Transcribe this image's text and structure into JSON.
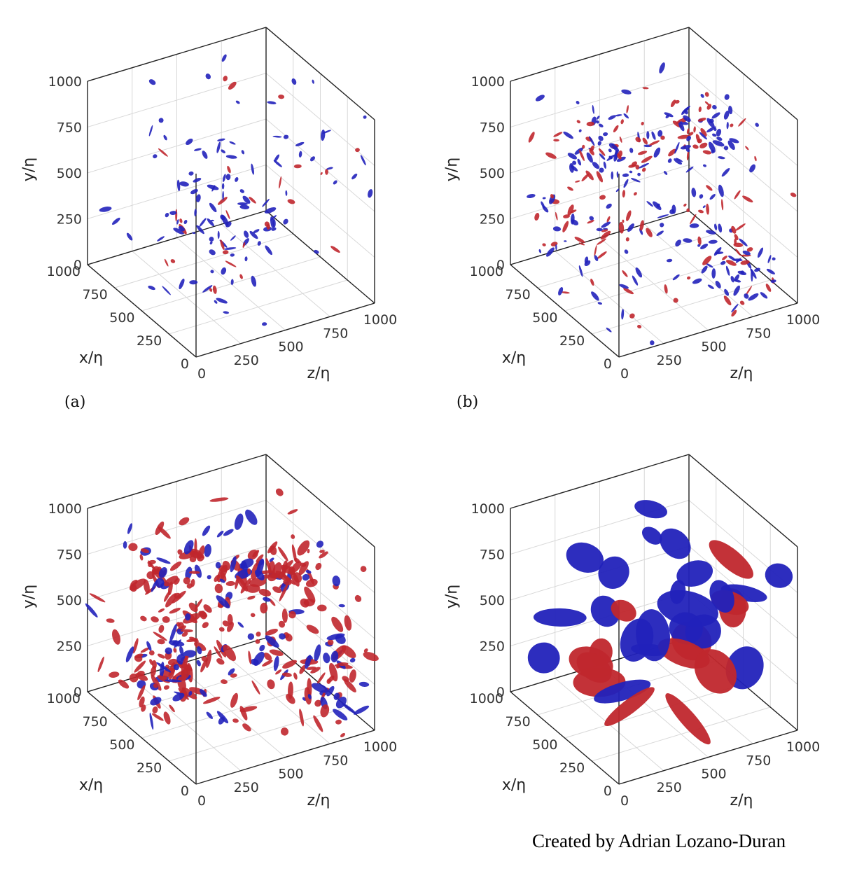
{
  "colors": {
    "positive": "#c0272d",
    "negative": "#2222bb",
    "grid": "#d8d8d8",
    "box": "#222222"
  },
  "chart_data": [
    {
      "type": "3d-isosurface",
      "panel": "a",
      "panel_label": "(a)",
      "xlabel": "x/η",
      "ylabel": "y/η",
      "zlabel": "z/η",
      "xlim": [
        0,
        1000
      ],
      "ylim": [
        0,
        1000
      ],
      "zlim": [
        0,
        1000
      ],
      "ticks": [
        "0",
        "250",
        "500",
        "750",
        "1000"
      ],
      "grid": true,
      "blob_style": "small",
      "blob_count": 140,
      "red_fraction": 0.3,
      "seed": 11
    },
    {
      "type": "3d-isosurface",
      "panel": "b",
      "panel_label": "(b)",
      "xlabel": "x/η",
      "ylabel": "y/η",
      "zlabel": "z/η",
      "xlim": [
        0,
        1000
      ],
      "ylim": [
        0,
        1000
      ],
      "zlim": [
        0,
        1000
      ],
      "ticks": [
        "0",
        "250",
        "500",
        "750",
        "1000"
      ],
      "grid": true,
      "blob_style": "small",
      "blob_count": 320,
      "red_fraction": 0.38,
      "seed": 29
    },
    {
      "type": "3d-isosurface",
      "panel": "c",
      "panel_label": "",
      "xlabel": "x/η",
      "ylabel": "y/η",
      "zlabel": "z/η",
      "xlim": [
        0,
        1000
      ],
      "ylim": [
        0,
        1000
      ],
      "zlim": [
        0,
        1000
      ],
      "ticks": [
        "0",
        "250",
        "500",
        "750",
        "1000"
      ],
      "grid": true,
      "blob_style": "medium",
      "blob_count": 380,
      "red_fraction": 0.68,
      "seed": 47
    },
    {
      "type": "3d-isosurface",
      "panel": "d",
      "panel_label": "",
      "xlabel": "x/η",
      "ylabel": "y/η",
      "zlabel": "z/η",
      "xlim": [
        0,
        1000
      ],
      "ylim": [
        0,
        1000
      ],
      "zlim": [
        0,
        1000
      ],
      "ticks": [
        "0",
        "250",
        "500",
        "750",
        "1000"
      ],
      "grid": true,
      "blob_style": "large",
      "blob_count": 34,
      "red_fraction": 0.5,
      "seed": 73
    }
  ],
  "credit": "Created by Adrian Lozano-Duran"
}
